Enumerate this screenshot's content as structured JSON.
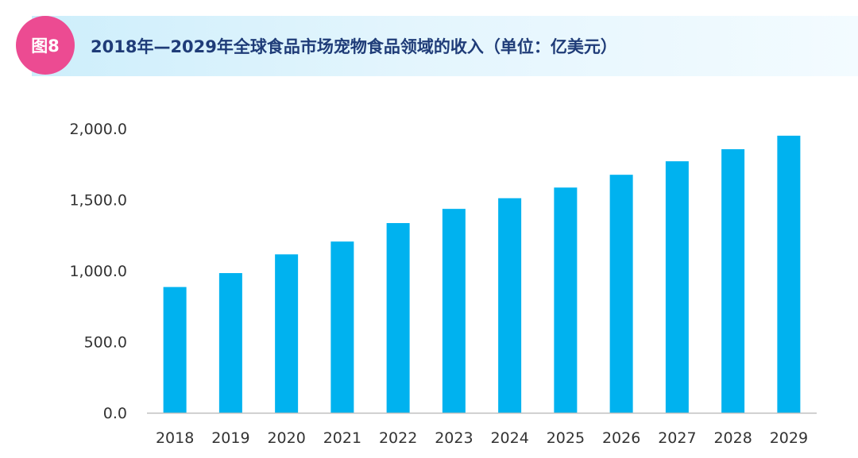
{
  "header": {
    "badge": "图8",
    "title": "2018年—2029年全球食品市场宠物食品领域的收入（单位：亿美元）"
  },
  "colors": {
    "bar": "#00b2ef",
    "badge": "#ec4b92",
    "title": "#1f3c78",
    "axis": "#bfbfbf"
  },
  "chart_data": {
    "type": "bar",
    "title": "2018年—2029年全球食品市场宠物食品领域的收入（单位：亿美元）",
    "xlabel": "",
    "ylabel": "",
    "ylim": [
      0,
      2000
    ],
    "grid": false,
    "categories": [
      "2018",
      "2019",
      "2020",
      "2021",
      "2022",
      "2023",
      "2024",
      "2025",
      "2026",
      "2027",
      "2028",
      "2029"
    ],
    "values": [
      885,
      983,
      1115,
      1205,
      1335,
      1435,
      1510,
      1585,
      1675,
      1770,
      1855,
      1950
    ],
    "yticks": [
      {
        "value": 0,
        "label": "0.0"
      },
      {
        "value": 500,
        "label": "500.0"
      },
      {
        "value": 1000,
        "label": "1,000.0"
      },
      {
        "value": 1500,
        "label": "1,500.0"
      },
      {
        "value": 2000,
        "label": "2,000.0"
      }
    ]
  }
}
